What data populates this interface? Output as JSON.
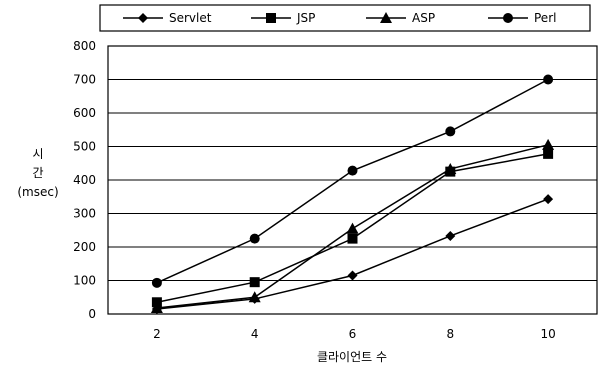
{
  "chart_data": {
    "type": "line",
    "x": [
      2,
      4,
      6,
      8,
      10
    ],
    "series": [
      {
        "name": "Servlet",
        "marker": "diamond",
        "values": [
          15,
          45,
          115,
          233,
          343
        ]
      },
      {
        "name": "JSP",
        "marker": "square",
        "values": [
          35,
          95,
          225,
          425,
          478
        ]
      },
      {
        "name": "ASP",
        "marker": "triangle",
        "values": [
          18,
          50,
          255,
          433,
          505
        ]
      },
      {
        "name": "Perl",
        "marker": "circle",
        "values": [
          93,
          225,
          428,
          545,
          700
        ]
      }
    ],
    "xlabel": "클라이언트 수",
    "ylabel": [
      "시",
      "간",
      "(msec)"
    ],
    "ylim": [
      0,
      800
    ],
    "yticks": [
      0,
      100,
      200,
      300,
      400,
      500,
      600,
      700,
      800
    ],
    "xticks": [
      2,
      4,
      6,
      8,
      10
    ],
    "grid": "horizontal",
    "legend_position": "top",
    "colors": {
      "line": "#000000",
      "background": "#ffffff"
    }
  }
}
